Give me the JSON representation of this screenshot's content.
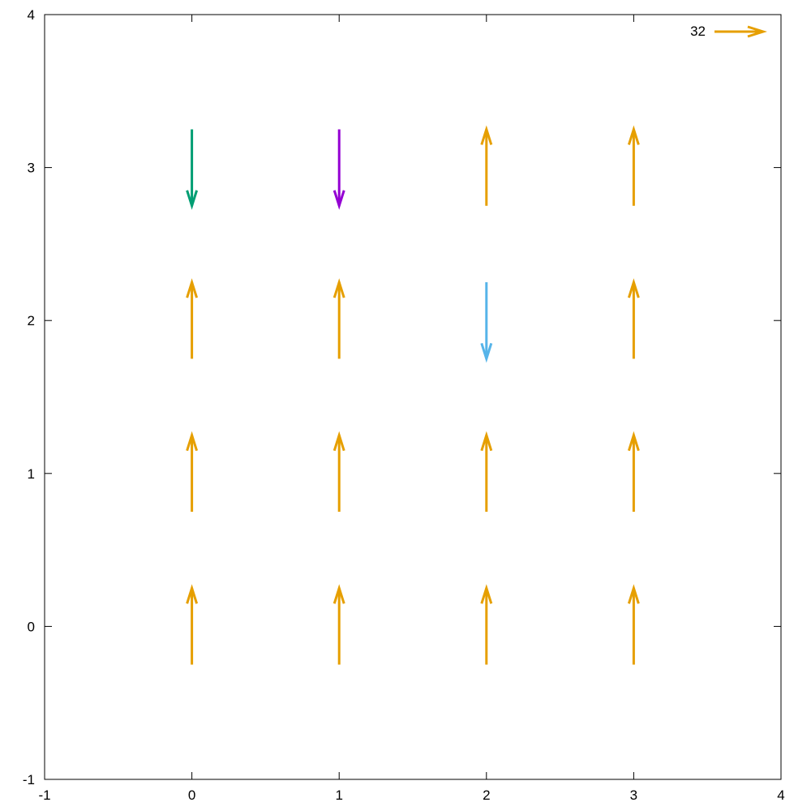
{
  "chart_data": {
    "type": "vector-field",
    "title": "",
    "xlabel": "",
    "ylabel": "",
    "xlim": [
      -1,
      4
    ],
    "ylim": [
      -1,
      4
    ],
    "x_ticks": [
      -1,
      0,
      1,
      2,
      3,
      4
    ],
    "y_ticks": [
      -1,
      0,
      1,
      2,
      3,
      4
    ],
    "x_tick_labels": [
      "-1",
      "0",
      "1",
      "2",
      "3",
      "4"
    ],
    "y_tick_labels": [
      "-1",
      "0",
      "1",
      "2",
      "3",
      "4"
    ],
    "grid": false,
    "legend": {
      "placement": "top-right",
      "label": "32",
      "color": "#e69f00"
    },
    "arrow_length": 0.5,
    "vectors": [
      {
        "x": 0,
        "y": 0,
        "dir": "up",
        "color": "#e69f00"
      },
      {
        "x": 1,
        "y": 0,
        "dir": "up",
        "color": "#e69f00"
      },
      {
        "x": 2,
        "y": 0,
        "dir": "up",
        "color": "#e69f00"
      },
      {
        "x": 3,
        "y": 0,
        "dir": "up",
        "color": "#e69f00"
      },
      {
        "x": 0,
        "y": 1,
        "dir": "up",
        "color": "#e69f00"
      },
      {
        "x": 1,
        "y": 1,
        "dir": "up",
        "color": "#e69f00"
      },
      {
        "x": 2,
        "y": 1,
        "dir": "up",
        "color": "#e69f00"
      },
      {
        "x": 3,
        "y": 1,
        "dir": "up",
        "color": "#e69f00"
      },
      {
        "x": 0,
        "y": 2,
        "dir": "up",
        "color": "#e69f00"
      },
      {
        "x": 1,
        "y": 2,
        "dir": "up",
        "color": "#e69f00"
      },
      {
        "x": 2,
        "y": 2,
        "dir": "down",
        "color": "#56b4e9"
      },
      {
        "x": 3,
        "y": 2,
        "dir": "up",
        "color": "#e69f00"
      },
      {
        "x": 0,
        "y": 3,
        "dir": "down",
        "color": "#009e73"
      },
      {
        "x": 1,
        "y": 3,
        "dir": "down",
        "color": "#9400d3"
      },
      {
        "x": 2,
        "y": 3,
        "dir": "up",
        "color": "#e69f00"
      },
      {
        "x": 3,
        "y": 3,
        "dir": "up",
        "color": "#e69f00"
      }
    ]
  }
}
